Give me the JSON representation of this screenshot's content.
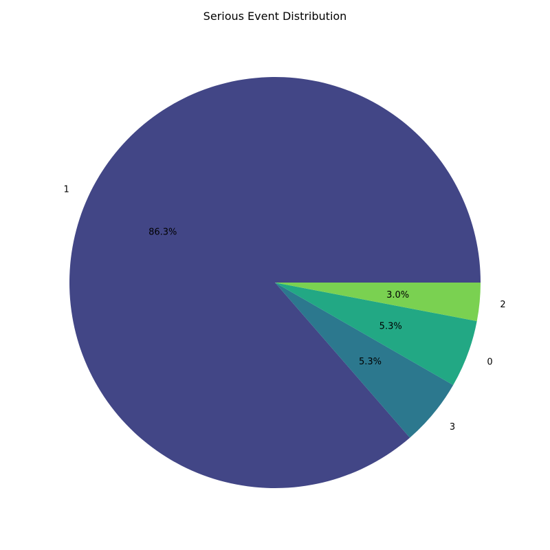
{
  "chart_data": {
    "type": "pie",
    "title": "Serious Event Distribution",
    "slices": [
      {
        "label": "1",
        "value": 86.3,
        "pct_label": "86.3%",
        "color": "#424686"
      },
      {
        "label": "3",
        "value": 5.3,
        "pct_label": "5.3%",
        "color": "#2c788e"
      },
      {
        "label": "0",
        "value": 5.3,
        "pct_label": "5.3%",
        "color": "#22a884"
      },
      {
        "label": "2",
        "value": 3.0,
        "pct_label": "3.0%",
        "color": "#7ad151"
      }
    ],
    "start_angle_deg": 0,
    "direction": "counterclockwise",
    "legend": "none"
  }
}
